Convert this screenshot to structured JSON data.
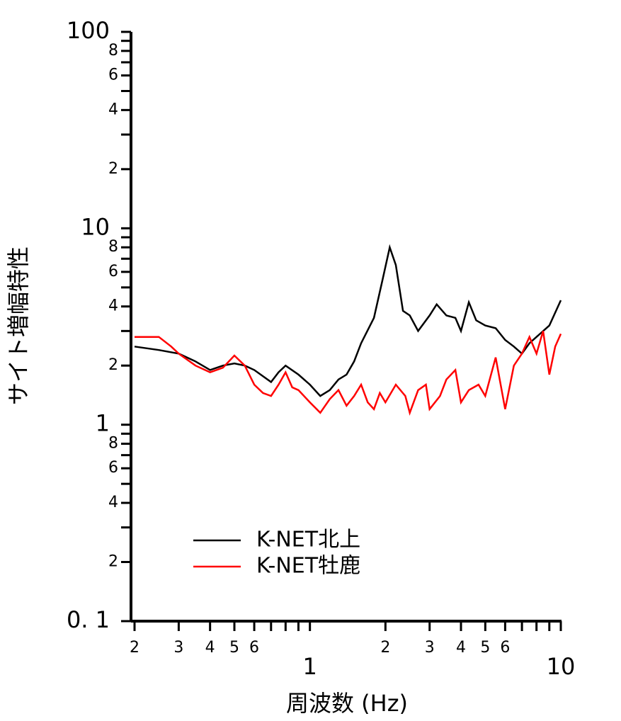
{
  "chart_data": {
    "type": "line",
    "y_label": "サイト増幅特性",
    "x_label": "周波数 (Hz)",
    "log_x": true,
    "log_y": true,
    "xlim": [
      0.2,
      10
    ],
    "ylim": [
      0.1,
      100
    ],
    "xticks": [
      {
        "value": 0.2,
        "label": "2"
      },
      {
        "value": 0.3,
        "label": "3"
      },
      {
        "value": 0.4,
        "label": "4"
      },
      {
        "value": 0.5,
        "label": "5"
      },
      {
        "value": 0.6,
        "label": "6"
      },
      1,
      2,
      3,
      4,
      5,
      6,
      10
    ],
    "xminorticks": [
      0.7,
      0.8,
      0.9,
      7,
      8,
      9
    ],
    "yticks": [
      {
        "value": 0.1,
        "label": "0. 1"
      },
      {
        "value": 0.2,
        "label": "2"
      },
      {
        "value": 0.4,
        "label": "4"
      },
      {
        "value": 0.6,
        "label": "6"
      },
      {
        "value": 0.8,
        "label": "8"
      },
      1,
      2,
      4,
      6,
      8,
      10,
      {
        "value": 20,
        "label": "2"
      },
      {
        "value": 40,
        "label": "4"
      },
      {
        "value": 60,
        "label": "6"
      },
      {
        "value": 80,
        "label": "8"
      },
      100
    ],
    "yminorticks": [
      0.3,
      0.5,
      0.7,
      0.9,
      3,
      5,
      7,
      9,
      30,
      50,
      70,
      90
    ],
    "legend": "lower-left",
    "series": [
      {
        "name": "K-NET北上",
        "color": "#000000",
        "x": [
          0.2,
          0.25,
          0.3,
          0.35,
          0.4,
          0.45,
          0.5,
          0.55,
          0.6,
          0.7,
          0.75,
          0.8,
          0.9,
          1.0,
          1.1,
          1.2,
          1.3,
          1.4,
          1.5,
          1.6,
          1.8,
          1.95,
          2.08,
          2.2,
          2.35,
          2.5,
          2.7,
          3.0,
          3.2,
          3.5,
          3.8,
          4.0,
          4.3,
          4.6,
          5.0,
          5.5,
          6.0,
          6.5,
          7.0,
          7.5,
          8.0,
          9.0,
          10
        ],
        "values": [
          2.5,
          2.4,
          2.3,
          2.1,
          1.9,
          2.0,
          2.05,
          2.0,
          1.9,
          1.65,
          1.85,
          2.0,
          1.8,
          1.6,
          1.4,
          1.5,
          1.7,
          1.8,
          2.1,
          2.6,
          3.5,
          5.5,
          8.0,
          6.5,
          3.8,
          3.6,
          3.0,
          3.6,
          4.1,
          3.6,
          3.5,
          3.0,
          4.2,
          3.4,
          3.2,
          3.1,
          2.7,
          2.5,
          2.3,
          2.6,
          2.8,
          3.2,
          4.3
        ]
      },
      {
        "name": "K-NET牡鹿",
        "color": "#ff0000",
        "x": [
          0.2,
          0.25,
          0.28,
          0.3,
          0.35,
          0.4,
          0.45,
          0.5,
          0.55,
          0.6,
          0.65,
          0.7,
          0.75,
          0.8,
          0.85,
          0.9,
          1.0,
          1.1,
          1.2,
          1.3,
          1.4,
          1.5,
          1.6,
          1.7,
          1.8,
          1.9,
          2.0,
          2.2,
          2.4,
          2.5,
          2.7,
          2.9,
          3.0,
          3.3,
          3.5,
          3.8,
          4.0,
          4.3,
          4.7,
          5.0,
          5.5,
          6.0,
          6.5,
          7.0,
          7.5,
          8.0,
          8.5,
          9.0,
          9.5,
          10
        ],
        "values": [
          2.8,
          2.8,
          2.5,
          2.3,
          2.0,
          1.85,
          1.95,
          2.25,
          2.0,
          1.6,
          1.45,
          1.4,
          1.6,
          1.85,
          1.55,
          1.5,
          1.3,
          1.15,
          1.35,
          1.5,
          1.25,
          1.4,
          1.6,
          1.3,
          1.2,
          1.45,
          1.3,
          1.6,
          1.4,
          1.15,
          1.5,
          1.6,
          1.2,
          1.4,
          1.7,
          1.9,
          1.3,
          1.5,
          1.6,
          1.4,
          2.2,
          1.2,
          2.0,
          2.3,
          2.8,
          2.3,
          3.0,
          1.8,
          2.5,
          2.9
        ]
      }
    ]
  }
}
